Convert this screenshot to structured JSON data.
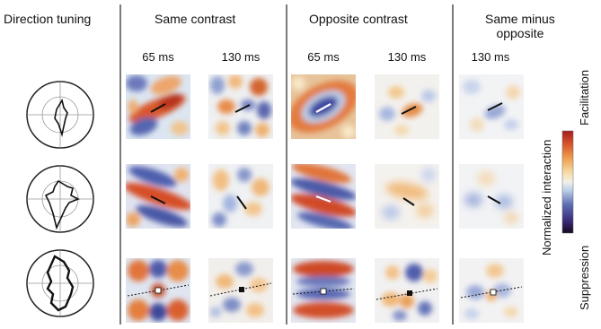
{
  "headers": {
    "direction_tuning": "Direction tuning",
    "same_contrast": "Same contrast",
    "opposite_contrast": "Opposite contrast",
    "same_minus_opposite_line1": "Same minus",
    "same_minus_opposite_line2": "opposite"
  },
  "time_labels": [
    "65 ms",
    "130 ms",
    "65 ms",
    "130 ms",
    "130 ms"
  ],
  "colorbar": {
    "title": "Normalized interaction",
    "top_label": "Facilitation",
    "bottom_label": "Suppression",
    "colors": [
      "#140a1e",
      "#3a2a7a",
      "#5e6fb4",
      "#bcd0ea",
      "#f4f0ea",
      "#f7d9a0",
      "#ef9a4a",
      "#d4502a",
      "#a51e1e"
    ]
  },
  "line_colors": {
    "segment_dark": "#111111",
    "segment_light": "#ffffff",
    "separator": "#222222"
  }
}
